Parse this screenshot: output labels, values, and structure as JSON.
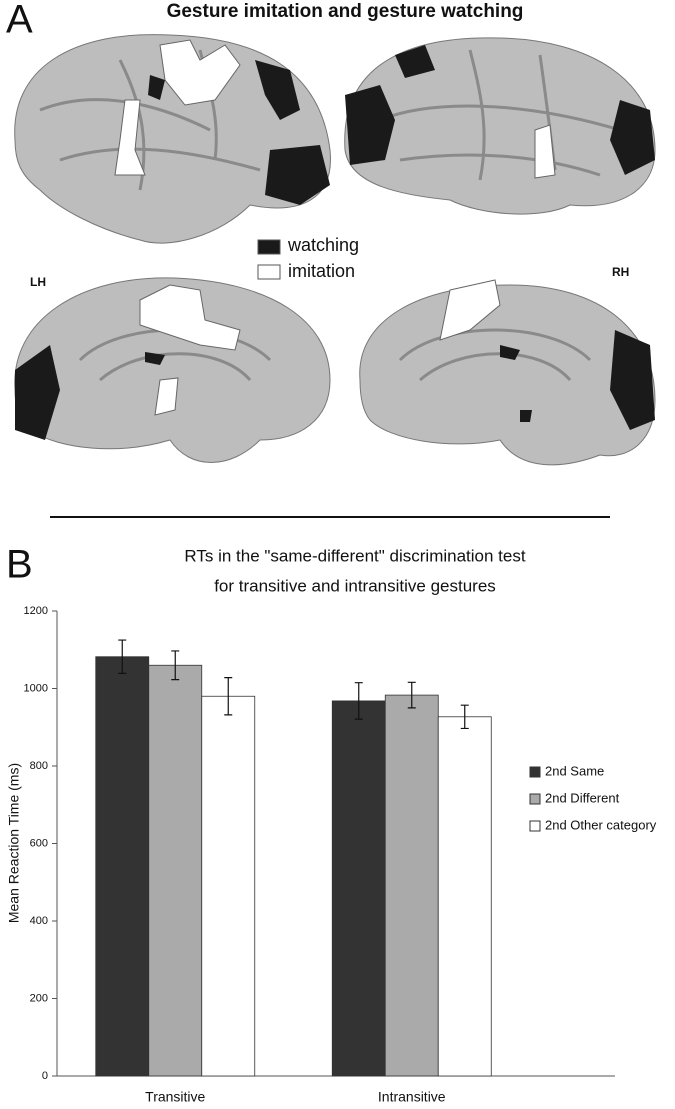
{
  "panel_a": {
    "letter": "A",
    "title": "Gesture imitation and gesture watching",
    "legend": [
      "watching",
      "imitation"
    ],
    "left_label": "LH",
    "right_label": "RH"
  },
  "chart_data": {
    "type": "bar",
    "letter": "B",
    "title": [
      "RTs in the \"same-different\" discrimination test",
      "for transitive and intransitive gestures"
    ],
    "y_label": "Mean Reaction Time (ms)",
    "categories": [
      "Transitive",
      "Intransitive"
    ],
    "series": [
      {
        "name": "2nd Same",
        "color": "#333333",
        "values": [
          1082,
          968
        ],
        "errors": [
          43,
          47
        ]
      },
      {
        "name": "2nd Different",
        "color": "#aaaaaa",
        "values": [
          1060,
          983
        ],
        "errors": [
          37,
          33
        ]
      },
      {
        "name": "2nd Other category",
        "color": "#ffffff",
        "values": [
          980,
          927
        ],
        "errors": [
          48,
          30
        ]
      }
    ],
    "ylim": [
      0,
      1200
    ],
    "yticks": [
      0,
      200,
      400,
      600,
      800,
      1000,
      1200
    ],
    "legend": "right"
  }
}
